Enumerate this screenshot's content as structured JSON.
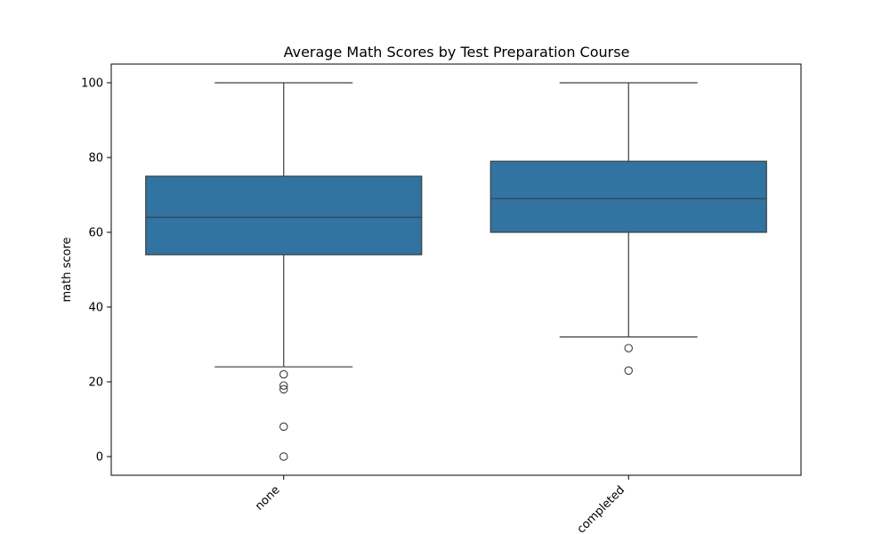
{
  "chart_data": {
    "type": "box",
    "title": "Average Math Scores by Test Preparation Course",
    "xlabel": "",
    "ylabel": "math score",
    "ylim": [
      -5,
      105
    ],
    "yticks": [
      0,
      20,
      40,
      60,
      80,
      100
    ],
    "categories": [
      "none",
      "completed"
    ],
    "box_color": "#3274a1",
    "line_color": "#3d3d3d",
    "boxes": [
      {
        "category": "none",
        "whisker_low": 24,
        "q1": 54,
        "median": 64,
        "q3": 75,
        "whisker_high": 100,
        "outliers": [
          22,
          19,
          18,
          8,
          0
        ]
      },
      {
        "category": "completed",
        "whisker_low": 32,
        "q1": 60,
        "median": 69,
        "q3": 79,
        "whisker_high": 100,
        "outliers": [
          29,
          23
        ]
      }
    ],
    "grid": false,
    "legend": "none"
  }
}
